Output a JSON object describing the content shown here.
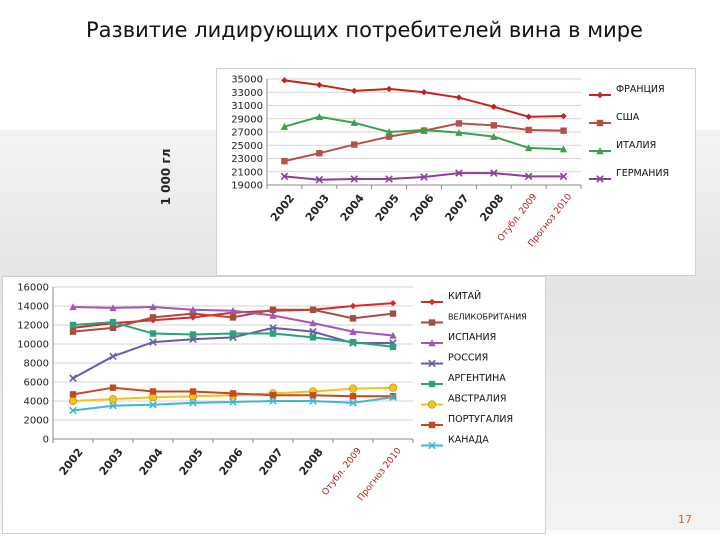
{
  "slide": {
    "title": "Развитие лидирующих  потребителей вина в мире",
    "ylabel": "1 000 гл",
    "page_number": "17"
  },
  "chart_data": [
    {
      "type": "line",
      "categories": [
        "2002",
        "2003",
        "2004",
        "2005",
        "2006",
        "2007",
        "2008",
        "Отубл. 2009",
        "Прогноз 2010"
      ],
      "ylim": [
        19000,
        35000
      ],
      "yticks": [
        "19000",
        "21000",
        "23000",
        "25000",
        "27000",
        "29000",
        "31000",
        "33000",
        "35000"
      ],
      "grid": true,
      "legend": "right",
      "series": [
        {
          "name": "ФРАНЦИЯ",
          "color": "#c0261f",
          "marker": "diamond",
          "values": [
            34800,
            34100,
            33200,
            33500,
            33000,
            32200,
            30800,
            29300,
            29400
          ]
        },
        {
          "name": "США",
          "color": "#b5514a",
          "marker": "square",
          "values": [
            22600,
            23800,
            25100,
            26300,
            27200,
            28300,
            28000,
            27300,
            27200
          ]
        },
        {
          "name": "ИТАЛИЯ",
          "color": "#3aa24a",
          "marker": "triangle",
          "values": [
            27800,
            29300,
            28400,
            27000,
            27300,
            26900,
            26300,
            24600,
            24400
          ]
        },
        {
          "name": "ГЕРМАНИЯ",
          "color": "#8e3d9b",
          "marker": "x",
          "values": [
            20300,
            19800,
            19900,
            19900,
            20200,
            20800,
            20800,
            20300,
            20300
          ]
        }
      ]
    },
    {
      "type": "line",
      "categories": [
        "2002",
        "2003",
        "2004",
        "2005",
        "2006",
        "2007",
        "2008",
        "Отубл. 2009",
        "Прогноз 2010"
      ],
      "ylim": [
        0,
        16000
      ],
      "yticks": [
        "0",
        "2000",
        "4000",
        "6000",
        "8000",
        "10000",
        "12000",
        "14000",
        "16000"
      ],
      "grid": true,
      "legend": "right",
      "series": [
        {
          "name": "КИТАЙ",
          "color": "#d92a2a",
          "marker": "diamond",
          "values": [
            11700,
            12200,
            12500,
            12800,
            13300,
            13500,
            13600,
            14000,
            14300
          ]
        },
        {
          "name": "ВЕЛИКОБРИТАНИЯ",
          "color": "#a84c43",
          "marker": "square",
          "values": [
            11300,
            11700,
            12800,
            13200,
            12800,
            13600,
            13600,
            12700,
            13200
          ]
        },
        {
          "name": "ИСПАНИЯ",
          "color": "#a356b8",
          "marker": "triangle",
          "values": [
            13900,
            13800,
            13900,
            13600,
            13500,
            13000,
            12200,
            11300,
            10900
          ]
        },
        {
          "name": "РОССИЯ",
          "color": "#6a5aa8",
          "marker": "x",
          "values": [
            6400,
            8700,
            10200,
            10500,
            10700,
            11700,
            11300,
            10100,
            10100
          ]
        },
        {
          "name": "АРГЕНТИНА",
          "color": "#2aa37c",
          "marker": "square",
          "values": [
            12000,
            12300,
            11100,
            11000,
            11100,
            11100,
            10700,
            10200,
            9700
          ]
        },
        {
          "name": "АВСТРАЛИЯ",
          "color": "#f0c419",
          "marker": "circle",
          "values": [
            4000,
            4200,
            4400,
            4500,
            4600,
            4800,
            5000,
            5300,
            5400
          ]
        },
        {
          "name": "ПОРТУГАЛИЯ",
          "color": "#c24a1c",
          "marker": "square",
          "values": [
            4700,
            5400,
            5000,
            5000,
            4800,
            4600,
            4600,
            4500,
            4500
          ]
        },
        {
          "name": "КАНАДА",
          "color": "#3fb6d6",
          "marker": "x",
          "values": [
            3000,
            3500,
            3600,
            3800,
            3900,
            4000,
            4000,
            3800,
            4400
          ]
        }
      ]
    }
  ]
}
